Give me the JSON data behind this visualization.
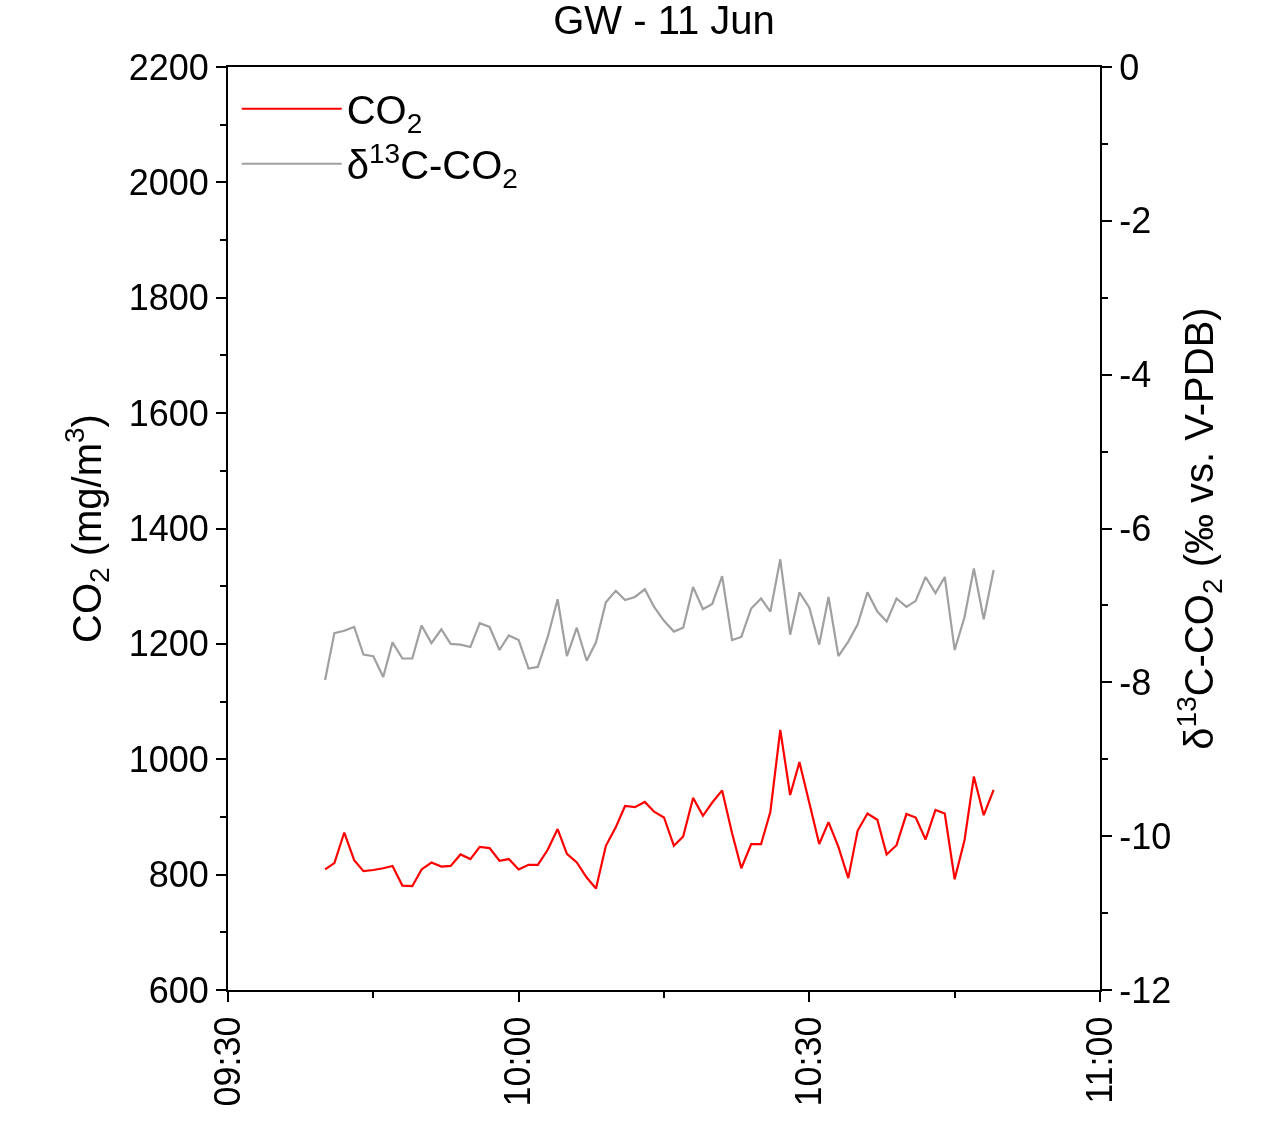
{
  "chart_data": {
    "type": "line",
    "title": "GW - 11 Jun",
    "xlabel": null,
    "ylabel": "CO$_{2}$ (mg/m$^{3}$)",
    "y2label": "δ$^{13}$C-CO$_{2}$ (‰ vs. V-PDB)",
    "x": [
      9.667,
      9.683,
      9.7,
      9.717,
      9.733,
      9.75,
      9.767,
      9.783,
      9.8,
      9.817,
      9.833,
      9.85,
      9.867,
      9.883,
      9.9,
      9.917,
      9.933,
      9.95,
      9.967,
      9.983,
      10,
      10.017,
      10.033,
      10.05,
      10.067,
      10.083,
      10.1,
      10.117,
      10.133,
      10.15,
      10.167,
      10.183,
      10.2,
      10.217,
      10.233,
      10.25,
      10.267,
      10.283,
      10.3,
      10.317,
      10.333,
      10.35,
      10.367,
      10.383,
      10.4,
      10.417,
      10.433,
      10.45,
      10.467,
      10.483,
      10.5,
      10.517,
      10.533,
      10.55,
      10.567,
      10.583,
      10.6,
      10.617,
      10.633,
      10.65,
      10.667,
      10.683,
      10.7,
      10.717,
      10.733,
      10.75,
      10.767,
      10.783,
      10.8,
      10.817
    ],
    "series": [
      {
        "name": "CO$_{2}$",
        "color": "#ff0000",
        "values": [
          809,
          820,
          873,
          825,
          806,
          808,
          811,
          815,
          781,
          780,
          809,
          821,
          814,
          815,
          835,
          827,
          848,
          846,
          824,
          827,
          809,
          817,
          817,
          843,
          879,
          836,
          821,
          795,
          776,
          850,
          882,
          919,
          917,
          926,
          909,
          899,
          850,
          866,
          933,
          902,
          925,
          946,
          872,
          811,
          853,
          853,
          909,
          1051,
          938,
          995,
          924,
          853,
          891,
          848,
          794,
          876,
          906,
          895,
          835,
          851,
          905,
          899,
          861,
          912,
          906,
          792,
          860,
          970,
          903,
          947
        ]
      },
      {
        "name": "δ$^{13}$C-CO$_{2}$",
        "color": "#a0a0a0",
        "axis": "y2",
        "values": [
          -7.97,
          -7.36,
          -7.33,
          -7.28,
          -7.64,
          -7.66,
          -7.93,
          -7.48,
          -7.69,
          -7.69,
          -7.26,
          -7.49,
          -7.31,
          -7.5,
          -7.51,
          -7.54,
          -7.23,
          -7.28,
          -7.58,
          -7.39,
          -7.45,
          -7.82,
          -7.8,
          -7.41,
          -6.92,
          -7.66,
          -7.29,
          -7.72,
          -7.48,
          -6.96,
          -6.81,
          -6.93,
          -6.89,
          -6.79,
          -7.02,
          -7.2,
          -7.34,
          -7.29,
          -6.76,
          -7.05,
          -6.98,
          -6.62,
          -7.45,
          -7.41,
          -7.04,
          -6.91,
          -7.08,
          -6.4,
          -7.38,
          -6.83,
          -7.03,
          -7.51,
          -6.89,
          -7.66,
          -7.47,
          -7.25,
          -6.83,
          -7.08,
          -7.21,
          -6.91,
          -7.02,
          -6.94,
          -6.63,
          -6.84,
          -6.63,
          -7.58,
          -7.15,
          -6.52,
          -7.18,
          -6.54
        ]
      }
    ],
    "xlim": [
      9.5,
      11
    ],
    "xticks": [
      {
        "value": 9.5,
        "label": "09:30"
      },
      {
        "value": 9.75,
        "label": null
      },
      {
        "value": 10,
        "label": "10:00"
      },
      {
        "value": 10.25,
        "label": null
      },
      {
        "value": 10.5,
        "label": "10:30"
      },
      {
        "value": 10.75,
        "label": null
      },
      {
        "value": 11,
        "label": "11:00"
      }
    ],
    "ylim": [
      600,
      2200
    ],
    "yticks": [
      600,
      {
        "value": 700,
        "label": null
      },
      800,
      {
        "value": 900,
        "label": null
      },
      1000,
      {
        "value": 1100,
        "label": null
      },
      1200,
      {
        "value": 1300,
        "label": null
      },
      1400,
      {
        "value": 1500,
        "label": null
      },
      1600,
      {
        "value": 1700,
        "label": null
      },
      1800,
      {
        "value": 1900,
        "label": null
      },
      2000,
      {
        "value": 2100,
        "label": null
      },
      2200
    ],
    "y2lim": [
      -12,
      0
    ],
    "y2ticks": [
      -12,
      {
        "value": -11,
        "label": null
      },
      -10,
      {
        "value": -9,
        "label": null
      },
      -8,
      {
        "value": -7,
        "label": null
      },
      -6,
      {
        "value": -5,
        "label": null
      },
      -4,
      {
        "value": -3,
        "label": null
      },
      -2,
      {
        "value": -1,
        "label": null
      },
      0
    ],
    "legend": "top left",
    "marker": "none",
    "line_style": "solid"
  }
}
